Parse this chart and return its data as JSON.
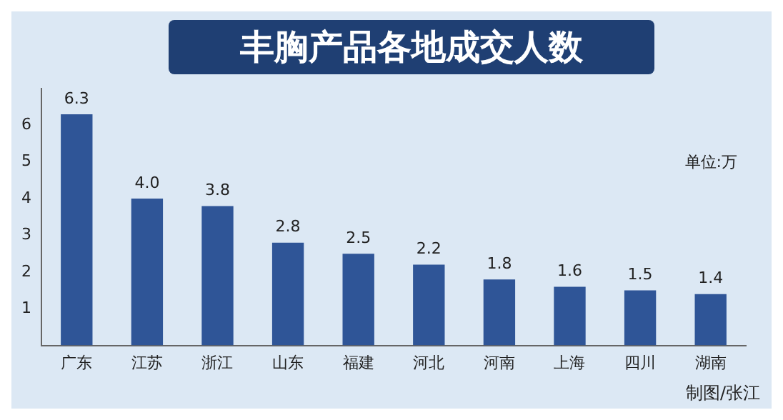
{
  "chart_data": {
    "type": "bar",
    "title": "丰胸产品各地成交人数",
    "categories": [
      "广东",
      "江苏",
      "浙江",
      "山东",
      "福建",
      "河北",
      "河南",
      "上海",
      "四川",
      "湖南"
    ],
    "values": [
      6.3,
      4.0,
      3.8,
      2.8,
      2.5,
      2.2,
      1.8,
      1.6,
      1.5,
      1.4
    ],
    "value_labels": [
      "6.3",
      "4.0",
      "3.8",
      "2.8",
      "2.5",
      "2.2",
      "1.8",
      "1.6",
      "1.5",
      "1.4"
    ],
    "color": "#2f5597",
    "ylim": [
      0,
      7
    ],
    "yticks": [
      1,
      2,
      3,
      4,
      5,
      6
    ],
    "grid": false,
    "legend": false,
    "annotations": [
      "单位:万",
      "制图/张江"
    ]
  }
}
